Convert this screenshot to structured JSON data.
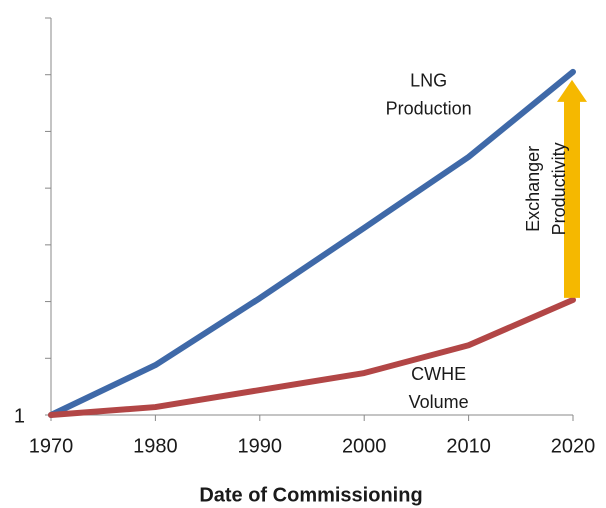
{
  "chart_data": {
    "type": "line",
    "x_label": "Date of Commissioning",
    "x": [
      1970,
      1980,
      1990,
      2000,
      2010,
      2020
    ],
    "xlim": [
      1970,
      2020
    ],
    "xticks": [
      1970,
      1980,
      1990,
      2000,
      2010,
      2020
    ],
    "ylim": [
      1,
      8
    ],
    "yticks": [
      1
    ],
    "y_minor_ticks": [
      2,
      3,
      4,
      5,
      6,
      7,
      8
    ],
    "series": [
      {
        "name": "LNG Production",
        "label_lines": [
          "LNG",
          "Production"
        ],
        "color": "#3f69a8",
        "values": [
          1,
          1.88,
          3.06,
          4.3,
          5.55,
          7.05
        ]
      },
      {
        "name": "CWHE Volume",
        "label_lines": [
          "CWHE",
          "Volume"
        ],
        "color": "#b24646",
        "values": [
          1,
          1.14,
          1.44,
          1.74,
          2.23,
          3.03
        ]
      }
    ],
    "arrow": {
      "label_lines": [
        "Exchanger",
        "Productivity"
      ],
      "color": "#f5b800"
    }
  }
}
